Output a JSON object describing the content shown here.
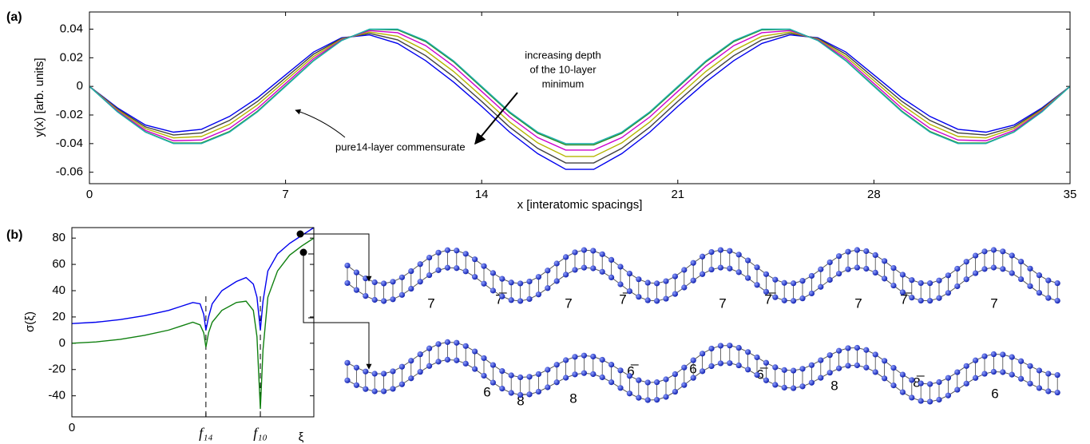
{
  "chart_data": [
    {
      "type": "line",
      "panel_label": "(a)",
      "xlabel": "x [interatomic spacings]",
      "ylabel": "y(x) [arb. units]",
      "x": [
        0,
        1,
        2,
        3,
        4,
        5,
        6,
        7,
        8,
        9,
        10,
        11,
        12,
        13,
        14,
        15,
        16,
        17,
        18,
        19,
        20,
        21,
        22,
        23,
        24,
        25,
        26,
        27,
        28,
        29,
        30,
        31,
        32,
        33,
        34,
        35
      ],
      "xlim": [
        0,
        35
      ],
      "xticks": [
        0,
        7,
        14,
        21,
        28,
        35
      ],
      "ylim": [
        -0.068,
        0.052
      ],
      "yticks": [
        -0.06,
        -0.04,
        -0.02,
        0,
        0.02,
        0.04
      ],
      "series": [
        {
          "color": "#0000ee",
          "values": [
            0,
            -0.015,
            -0.027,
            -0.032,
            -0.03,
            -0.021,
            -0.008,
            0.008,
            0.024,
            0.034,
            0.036,
            0.03,
            0.018,
            0.003,
            -0.014,
            -0.032,
            -0.047,
            -0.058,
            -0.058,
            -0.047,
            -0.032,
            -0.014,
            0.003,
            0.018,
            0.03,
            0.036,
            0.034,
            0.024,
            0.008,
            -0.008,
            -0.021,
            -0.03,
            -0.032,
            -0.027,
            -0.015,
            0
          ]
        },
        {
          "color": "#404040",
          "values": [
            0,
            -0.0157,
            -0.0283,
            -0.034,
            -0.0325,
            -0.0238,
            -0.0105,
            0.006,
            0.0225,
            0.0335,
            0.037,
            0.0325,
            0.0215,
            0.0067,
            -0.0105,
            -0.0285,
            -0.0433,
            -0.0535,
            -0.0535,
            -0.0433,
            -0.0285,
            -0.0105,
            0.0067,
            0.0215,
            0.0325,
            0.037,
            0.0335,
            0.0225,
            0.006,
            -0.0105,
            -0.0238,
            -0.0325,
            -0.034,
            -0.0283,
            -0.0157,
            0
          ]
        },
        {
          "color": "#b5b500",
          "values": [
            0,
            -0.0164,
            -0.0295,
            -0.036,
            -0.035,
            -0.0265,
            -0.0129,
            0.004,
            0.0209,
            0.033,
            0.038,
            0.035,
            0.025,
            0.0104,
            -0.007,
            -0.0249,
            -0.0395,
            -0.049,
            -0.049,
            -0.0395,
            -0.0249,
            -0.007,
            0.0104,
            0.025,
            0.035,
            0.038,
            0.033,
            0.0209,
            0.004,
            -0.0129,
            -0.0265,
            -0.035,
            -0.036,
            -0.0295,
            -0.0164,
            0
          ]
        },
        {
          "color": "#cc00cc",
          "values": [
            0,
            -0.0171,
            -0.0308,
            -0.038,
            -0.0375,
            -0.0293,
            -0.0154,
            0.002,
            0.0194,
            0.0325,
            0.039,
            0.0375,
            0.0285,
            0.0141,
            -0.0035,
            -0.0214,
            -0.0358,
            -0.0445,
            -0.0445,
            -0.0358,
            -0.0214,
            -0.0035,
            0.0141,
            0.0285,
            0.0375,
            0.039,
            0.0325,
            0.0194,
            0.002,
            -0.0154,
            -0.0293,
            -0.0375,
            -0.038,
            -0.0308,
            -0.0171,
            0
          ]
        },
        {
          "color": "#228b22",
          "values": [
            0,
            -0.0177,
            -0.0318,
            -0.0396,
            -0.0395,
            -0.0315,
            -0.0173,
            0.0004,
            0.0181,
            0.0321,
            0.0398,
            0.0395,
            0.0313,
            0.0171,
            -0.0007,
            -0.0185,
            -0.0328,
            -0.0409,
            -0.0409,
            -0.0328,
            -0.0185,
            -0.0007,
            0.0171,
            0.0313,
            0.0395,
            0.0398,
            0.0321,
            0.0181,
            0.0004,
            -0.0173,
            -0.0315,
            -0.0395,
            -0.0396,
            -0.0318,
            -0.0177,
            0
          ]
        },
        {
          "color": "#20b0b0",
          "values": [
            0,
            -0.0178,
            -0.032,
            -0.04,
            -0.04,
            -0.032,
            -0.0178,
            0,
            0.0178,
            0.032,
            0.04,
            0.04,
            0.032,
            0.0178,
            0,
            -0.0178,
            -0.032,
            -0.04,
            -0.04,
            -0.032,
            -0.0178,
            0,
            0.0178,
            0.032,
            0.04,
            0.04,
            0.032,
            0.0178,
            0,
            -0.0178,
            -0.032,
            -0.04,
            -0.04,
            -0.032,
            -0.0178,
            0
          ]
        }
      ],
      "annotations": [
        [
          "increasing depth",
          "of the 10-layer",
          "minimum"
        ],
        [
          "pure14-layer commensurate"
        ]
      ]
    },
    {
      "type": "line",
      "panel_label": "(b)",
      "xlabel": "ξ",
      "ylabel": "σ(ξ)",
      "x": [
        0,
        0.1,
        0.2,
        0.3,
        0.4,
        0.45,
        0.5,
        0.53,
        0.545,
        0.554,
        0.565,
        0.58,
        0.62,
        0.68,
        0.72,
        0.75,
        0.765,
        0.779,
        0.79,
        0.81,
        0.85,
        0.9,
        0.95,
        1.0
      ],
      "xlim": [
        0,
        1
      ],
      "xticks": [
        0,
        {
          "value": 0.554,
          "label": "f₁₄"
        },
        {
          "value": 0.779,
          "label": "f₁₀"
        }
      ],
      "ylim": [
        -56,
        88
      ],
      "yticks": [
        -40,
        -20,
        0,
        20,
        40,
        60,
        80
      ],
      "series": [
        {
          "color": "#0000ee",
          "values": [
            15,
            16,
            18,
            21,
            25,
            28,
            31,
            30,
            22,
            10,
            20,
            30,
            40,
            47,
            50,
            45,
            35,
            10,
            32,
            55,
            68,
            76,
            82,
            88
          ]
        },
        {
          "color": "#108010",
          "values": [
            0,
            1,
            3,
            6,
            10,
            13,
            16,
            14,
            8,
            -3,
            8,
            16,
            25,
            31,
            32,
            25,
            5,
            -50,
            -5,
            35,
            55,
            67,
            74,
            80
          ]
        }
      ]
    }
  ],
  "diagram": {
    "upper_chain_labels": [
      "7",
      "7̅",
      "7",
      "7̅",
      "7",
      "7̅",
      "7",
      "7̅",
      "7"
    ],
    "lower_chain_labels": [
      "6",
      "8̅",
      "8",
      "6̅",
      "6",
      "6̅",
      "8",
      "8̅",
      "6"
    ]
  }
}
